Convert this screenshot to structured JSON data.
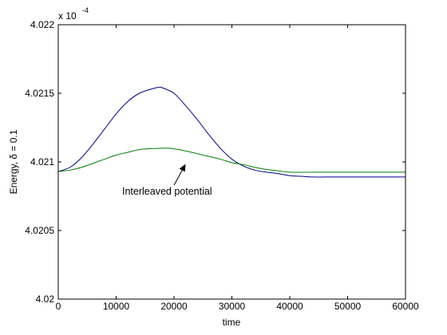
{
  "chart_data": {
    "type": "line",
    "xlabel": "time",
    "ylabel": "Energy, δ = 0.1",
    "exponent_label": {
      "base": "x 10",
      "exp": "-4"
    },
    "xlim": [
      0,
      60000
    ],
    "ylim": [
      4.02,
      4.022
    ],
    "x_ticks": [
      0,
      10000,
      20000,
      30000,
      40000,
      50000,
      60000
    ],
    "x_tick_labels": [
      "0",
      "10000",
      "20000",
      "30000",
      "40000",
      "50000",
      "60000"
    ],
    "y_ticks": [
      4.02,
      4.0205,
      4.021,
      4.0215,
      4.022
    ],
    "y_tick_labels": [
      "4.02",
      "4.0205",
      "4.021",
      "4.0215",
      "4.022"
    ],
    "grid": false,
    "series": [
      {
        "color": "#00008b",
        "x": [
          0,
          2000,
          4000,
          6000,
          8000,
          10000,
          12000,
          14000,
          16000,
          17500,
          18000,
          20000,
          22000,
          24000,
          26000,
          28000,
          30000,
          32000,
          34000,
          36000,
          38000,
          40000,
          42000,
          44000,
          46000,
          48000,
          50000,
          55000,
          60000
        ],
        "values": [
          4.02093,
          4.02096,
          4.02103,
          4.02113,
          4.02124,
          4.02135,
          4.02144,
          4.0215,
          4.02153,
          4.021545,
          4.02154,
          4.0215,
          4.02141,
          4.02131,
          4.0212,
          4.0211,
          4.02102,
          4.02097,
          4.02094,
          4.020925,
          4.020915,
          4.0209,
          4.020895,
          4.02089,
          4.02089,
          4.02089,
          4.02089,
          4.02089,
          4.02089
        ]
      },
      {
        "color": "#007f00",
        "x": [
          0,
          2000,
          4000,
          6000,
          8000,
          10000,
          12000,
          14000,
          16000,
          18000,
          19000,
          20000,
          22000,
          24000,
          26000,
          28000,
          30000,
          32000,
          34000,
          36000,
          38000,
          40000,
          45000,
          50000,
          55000,
          60000
        ],
        "values": [
          4.02093,
          4.02094,
          4.02096,
          4.02099,
          4.02102,
          4.02105,
          4.02107,
          4.02109,
          4.021097,
          4.0211,
          4.0211,
          4.021095,
          4.02108,
          4.02106,
          4.02104,
          4.02102,
          4.020995,
          4.02098,
          4.02096,
          4.020945,
          4.020935,
          4.020925,
          4.020925,
          4.020925,
          4.020925,
          4.020925
        ]
      }
    ],
    "annotation": {
      "text": "Interleaved potential",
      "arrow_to": {
        "x": 22000,
        "y": 4.020985
      },
      "arrow_from": {
        "x": 20000,
        "y": 4.02083
      }
    }
  }
}
